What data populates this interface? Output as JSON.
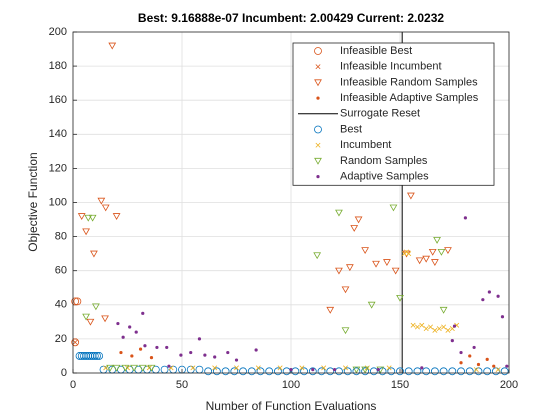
{
  "chart_data": {
    "type": "scatter",
    "title": "Best: 9.16888e-07 Incumbent: 2.00429 Current: 2.0232",
    "xlabel": "Number of Function Evaluations",
    "ylabel": "Objective Function",
    "xlim": [
      0,
      200
    ],
    "xticks": [
      0,
      50,
      100,
      150,
      200
    ],
    "ylim": [
      0,
      200
    ],
    "yticks": [
      0,
      20,
      40,
      60,
      80,
      100,
      120,
      140,
      160,
      180,
      200
    ],
    "grid": true,
    "legend": "upper right",
    "series": [
      {
        "name": "Infeasible Best",
        "color": "#d95319",
        "marker": "circle",
        "x": [
          1,
          2,
          1
        ],
        "y": [
          42,
          42,
          18
        ]
      },
      {
        "name": "Infeasible Incumbent",
        "color": "#d95319",
        "marker": "x",
        "x": [
          1
        ],
        "y": [
          18
        ]
      },
      {
        "name": "Infeasible Random Samples",
        "color": "#d95319",
        "marker": "triangle-down",
        "x": [
          4,
          6,
          8,
          9.6,
          13,
          15,
          18,
          20,
          14.7,
          118,
          122,
          125,
          127,
          129,
          131,
          134,
          139,
          144,
          148,
          153,
          155,
          159,
          162,
          165,
          166,
          172
        ],
        "y": [
          92,
          83,
          30,
          70,
          101,
          97,
          192,
          92,
          32,
          37,
          60,
          49,
          62,
          85,
          90,
          72,
          64,
          65,
          60,
          70,
          104,
          66,
          67,
          71,
          65,
          72
        ]
      },
      {
        "name": "Infeasible Adaptive Samples",
        "color": "#d95319",
        "marker": "dot",
        "x": [
          22,
          27,
          31,
          36,
          178,
          182,
          186,
          190,
          193
        ],
        "y": [
          12,
          10,
          14,
          9,
          6,
          10,
          5,
          8,
          4
        ]
      },
      {
        "name": "Surrogate Reset",
        "color": "#000000",
        "marker": "vline",
        "x": [
          151
        ]
      },
      {
        "name": "Best",
        "color": "#0072bd",
        "marker": "circle",
        "x": [
          3,
          4,
          5,
          6,
          7,
          8,
          9,
          10,
          11,
          12,
          14,
          18,
          22,
          26,
          30,
          34,
          38,
          42,
          46,
          50,
          54,
          58,
          62,
          66,
          70,
          74,
          78,
          82,
          86,
          90,
          94,
          98,
          102,
          106,
          110,
          114,
          118,
          122,
          126,
          130,
          134,
          138,
          142,
          146,
          150,
          154,
          158,
          162,
          166,
          170,
          174,
          178,
          182,
          186,
          190,
          194,
          198
        ],
        "y": [
          10,
          10,
          10,
          10,
          10,
          10,
          10,
          10,
          10,
          10,
          2,
          2,
          2,
          2,
          2,
          2,
          2,
          2,
          2,
          2,
          2,
          2,
          1,
          1,
          1,
          1,
          1,
          1,
          1,
          1,
          1,
          1,
          1,
          1,
          1,
          1,
          1,
          1,
          1,
          1,
          1,
          1,
          1,
          1,
          1,
          1,
          1,
          1,
          1,
          1,
          1,
          1,
          1,
          1,
          1,
          1,
          1
        ]
      },
      {
        "name": "Incumbent",
        "color": "#edb120",
        "marker": "x",
        "x": [
          15,
          25,
          35,
          45,
          55,
          65,
          75,
          85,
          95,
          105,
          115,
          125,
          135,
          145,
          152,
          153,
          154,
          156,
          158,
          160,
          162,
          164,
          166,
          168,
          170,
          172,
          174,
          176,
          185,
          195
        ],
        "y": [
          3,
          3,
          3,
          3,
          3,
          3,
          3,
          3,
          3,
          3,
          3,
          3,
          3,
          3,
          70,
          71,
          70,
          28,
          27,
          28,
          26,
          27,
          25,
          26,
          27,
          25,
          26,
          28,
          2,
          2
        ]
      },
      {
        "name": "Random Samples",
        "color": "#77ac30",
        "marker": "triangle-down",
        "x": [
          6,
          7,
          9,
          10.5,
          17,
          20,
          24,
          28,
          32,
          36,
          112,
          122,
          125,
          130,
          134,
          137,
          141,
          147,
          150,
          167,
          169,
          170
        ],
        "y": [
          33,
          91,
          91,
          39,
          3,
          3,
          3,
          3,
          3,
          3,
          69,
          94,
          25,
          2,
          2,
          40,
          2,
          97,
          44,
          78,
          71,
          37
        ]
      },
      {
        "name": "Adaptive Samples",
        "color": "#7e2f8e",
        "marker": "dot",
        "x": [
          20.6,
          23,
          26,
          29,
          32,
          33,
          38.5,
          43,
          49.5,
          54,
          58,
          60.5,
          65,
          71,
          75,
          84,
          44,
          100,
          110,
          120,
          140,
          160,
          174,
          175,
          178,
          180,
          184,
          188,
          191,
          195,
          197,
          199
        ],
        "y": [
          29,
          21,
          27,
          24,
          35,
          16,
          15,
          15,
          10.5,
          12,
          20,
          10.5,
          9.4,
          12,
          7.6,
          13.5,
          4,
          2,
          2,
          2,
          2,
          3,
          19,
          27.5,
          12,
          91,
          15,
          43,
          47.5,
          45,
          33,
          4
        ]
      }
    ]
  }
}
